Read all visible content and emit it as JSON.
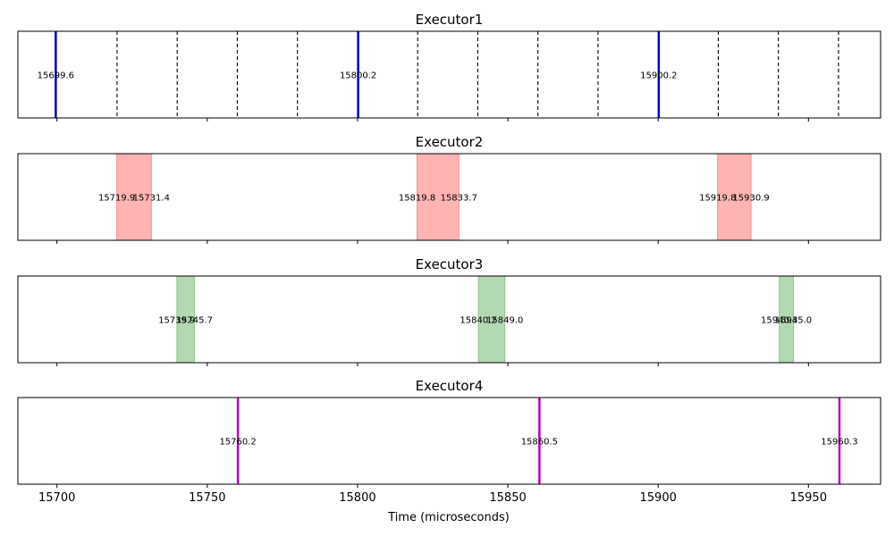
{
  "chart_data": {
    "type": "timeline",
    "xlabel": "Time (microseconds)",
    "xlim": [
      15687,
      15974
    ],
    "xticks": [
      "15700",
      "15750",
      "15800",
      "15850",
      "15900",
      "15950"
    ],
    "xtick_values": [
      15700,
      15750,
      15800,
      15850,
      15900,
      15950
    ],
    "panels": [
      {
        "title": "Executor1",
        "dashed_lines": [
          15720,
          15740,
          15760,
          15780,
          15820,
          15840,
          15860,
          15880,
          15920,
          15940,
          15960
        ],
        "events": [
          {
            "type": "line",
            "t": 15699.6,
            "label": "15699.6",
            "color": "#0000cc"
          },
          {
            "type": "line",
            "t": 15800.2,
            "label": "15800.2",
            "color": "#0000cc"
          },
          {
            "type": "line",
            "t": 15900.2,
            "label": "15900.2",
            "color": "#0000cc"
          }
        ]
      },
      {
        "title": "Executor2",
        "events": [
          {
            "type": "span",
            "start": 15719.9,
            "end": 15731.4,
            "start_label": "15719.9",
            "end_label": "15731.4",
            "color": "#ffb3b3",
            "edge": "#f08f8f"
          },
          {
            "type": "span",
            "start": 15819.8,
            "end": 15833.7,
            "start_label": "15819.8",
            "end_label": "15833.7",
            "color": "#ffb3b3",
            "edge": "#f08f8f"
          },
          {
            "type": "span",
            "start": 15919.8,
            "end": 15930.9,
            "start_label": "15919.8",
            "end_label": "15930.9",
            "color": "#ffb3b3",
            "edge": "#f08f8f"
          }
        ]
      },
      {
        "title": "Executor3",
        "events": [
          {
            "type": "span",
            "start": 15739.9,
            "end": 15745.7,
            "start_label": "15739.9",
            "end_label": "15745.7",
            "color": "#b2d9b2",
            "edge": "#8fc48f"
          },
          {
            "type": "span",
            "start": 15840.2,
            "end": 15849.0,
            "start_label": "15840.2",
            "end_label": "15849.0",
            "color": "#b2d9b2",
            "edge": "#8fc48f"
          },
          {
            "type": "span",
            "start": 15940.3,
            "end": 15945.0,
            "start_label": "15940.3",
            "end_label": "15945.0",
            "color": "#b2d9b2",
            "edge": "#8fc48f"
          }
        ]
      },
      {
        "title": "Executor4",
        "events": [
          {
            "type": "line",
            "t": 15760.2,
            "label": "15760.2",
            "color": "#bb00bb"
          },
          {
            "type": "line",
            "t": 15860.5,
            "label": "15860.5",
            "color": "#bb00bb"
          },
          {
            "type": "line",
            "t": 15960.3,
            "label": "15960.3",
            "color": "#bb00bb"
          }
        ]
      }
    ]
  }
}
